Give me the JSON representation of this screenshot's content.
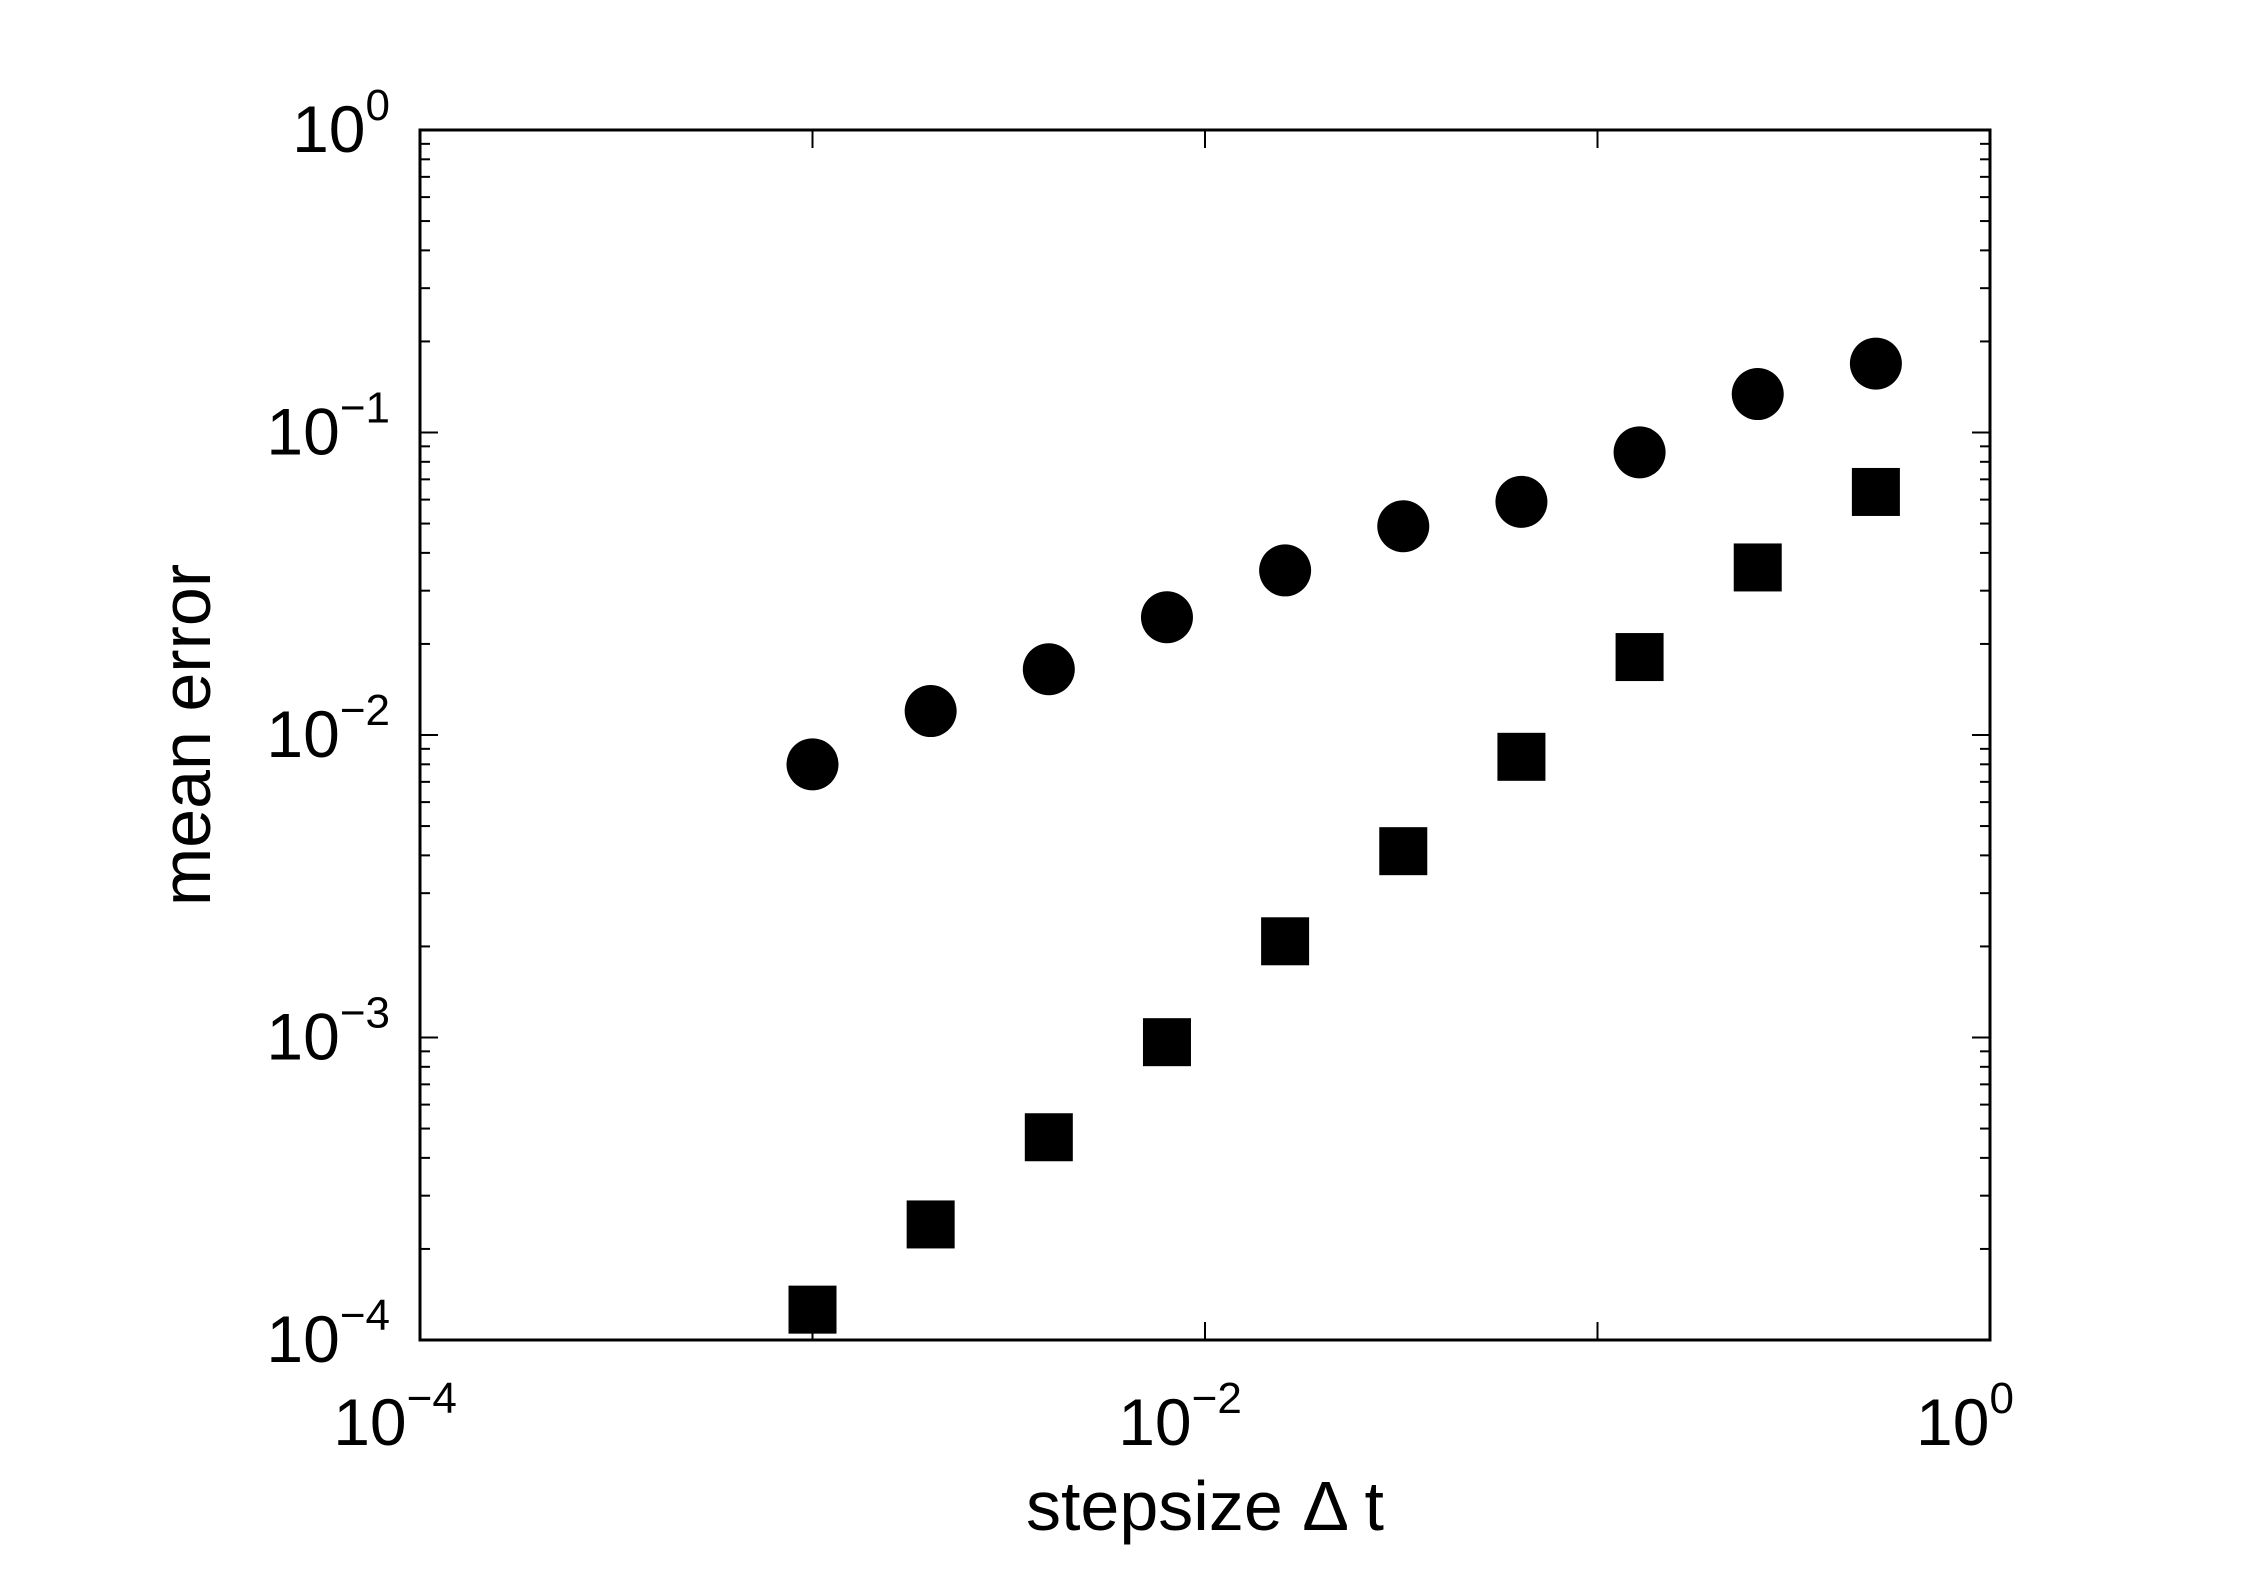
{
  "chart_data": {
    "type": "scatter",
    "title": "",
    "xlabel": "stepsize   Δ t",
    "ylabel": "mean error",
    "xscale": "log",
    "yscale": "log",
    "xlim": [
      0.0001,
      1
    ],
    "ylim": [
      0.0001,
      1
    ],
    "xticks": [
      {
        "value": 0.0001,
        "base": "10",
        "exp": "−4"
      },
      {
        "value": 0.01,
        "base": "10",
        "exp": "−2"
      },
      {
        "value": 1,
        "base": "10",
        "exp": "0"
      }
    ],
    "yticks": [
      {
        "value": 0.0001,
        "base": "10",
        "exp": "−4"
      },
      {
        "value": 0.001,
        "base": "10",
        "exp": "−3"
      },
      {
        "value": 0.01,
        "base": "10",
        "exp": "−2"
      },
      {
        "value": 0.1,
        "base": "10",
        "exp": "−1"
      },
      {
        "value": 1,
        "base": "10",
        "exp": "0"
      }
    ],
    "grid": false,
    "series": [
      {
        "marker": "circle",
        "color": "#000000",
        "x": [
          0.001,
          0.002,
          0.004,
          0.008,
          0.016,
          0.032,
          0.064,
          0.128,
          0.256,
          0.512
        ],
        "y": [
          0.008,
          0.012,
          0.0165,
          0.0245,
          0.035,
          0.049,
          0.059,
          0.086,
          0.134,
          0.169
        ]
      },
      {
        "marker": "square",
        "color": "#000000",
        "x": [
          0.001,
          0.002,
          0.004,
          0.008,
          0.016,
          0.032,
          0.064,
          0.128,
          0.256,
          0.512
        ],
        "y": [
          0.000126,
          0.000241,
          0.000468,
          0.000965,
          0.00208,
          0.00413,
          0.00847,
          0.0181,
          0.0358,
          0.0636
        ]
      }
    ]
  }
}
